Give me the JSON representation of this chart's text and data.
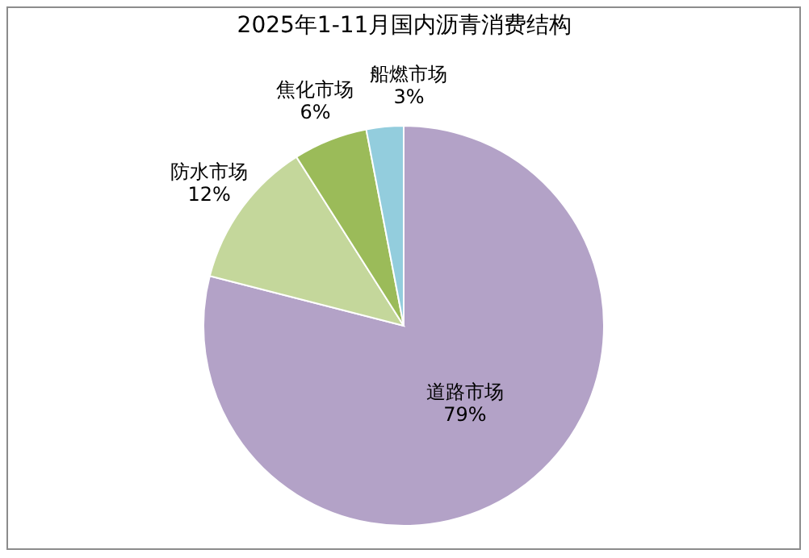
{
  "chart_data": {
    "type": "pie",
    "title": "2025年1-11月国内沥青消费结构",
    "categories": [
      "道路市场",
      "防水市场",
      "焦化市场",
      "船燃市场"
    ],
    "values": [
      79,
      12,
      6,
      3
    ],
    "colors": [
      "#b3a2c7",
      "#c4d79b",
      "#9bbb59",
      "#93cddd"
    ],
    "value_labels": [
      "79%",
      "12%",
      "6%",
      "3%"
    ]
  }
}
